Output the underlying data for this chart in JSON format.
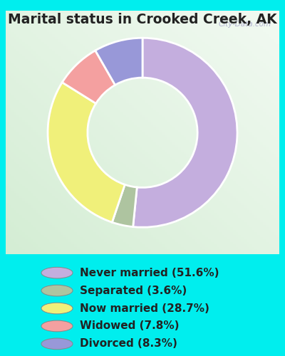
{
  "title": "Marital status in Crooked Creek, AK",
  "slices": [
    51.6,
    3.6,
    28.7,
    7.8,
    8.3
  ],
  "labels": [
    "Never married (51.6%)",
    "Separated (3.6%)",
    "Now married (28.7%)",
    "Widowed (7.8%)",
    "Divorced (8.3%)"
  ],
  "colors": [
    "#c4aede",
    "#aec4a0",
    "#f0f07a",
    "#f4a0a0",
    "#9898d8"
  ],
  "bg_cyan": "#00eeee",
  "chart_bg_color": "#d8ece0",
  "title_color": "#222222",
  "title_fontsize": 13.5,
  "legend_fontsize": 11,
  "watermark": "City-Data.com",
  "donut_width": 0.42,
  "start_angle": 90,
  "legend_label_color": "#222222"
}
